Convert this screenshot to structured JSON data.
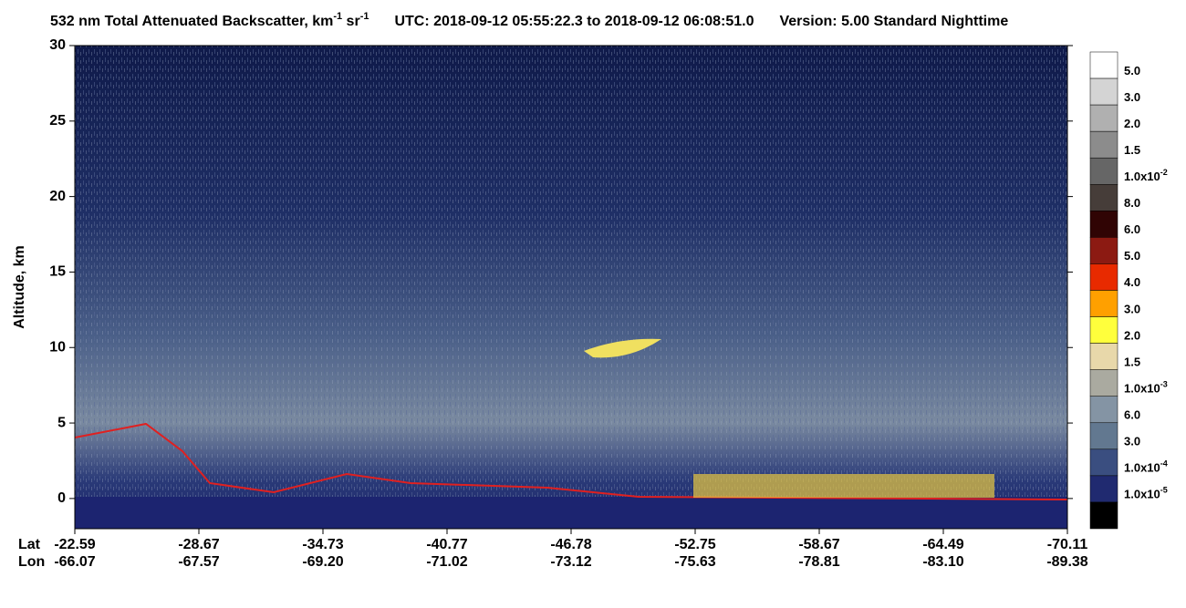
{
  "chart_data": {
    "type": "heatmap",
    "title_parts": [
      "532 nm Total Attenuated Backscatter, km",
      "-1",
      " sr",
      "-1",
      "UTC:  2018-09-12 05:55:22.3  to  2018-09-12 06:08:51.0",
      "Version: 5.00  Standard  Nighttime"
    ],
    "ylabel": "Altitude, km",
    "ylim": [
      -2,
      30
    ],
    "yticks": [
      0,
      5,
      10,
      15,
      20,
      25,
      30
    ],
    "row_labels": [
      "Lat",
      "Lon"
    ],
    "lat": [
      "-22.59",
      "-28.67",
      "-34.73",
      "-40.77",
      "-46.78",
      "-52.75",
      "-58.67",
      "-64.49",
      "-70.11"
    ],
    "lon": [
      "-66.07",
      "-67.57",
      "-69.20",
      "-71.02",
      "-73.12",
      "-75.63",
      "-78.81",
      "-83.10",
      "-89.38"
    ],
    "colorbar": [
      {
        "color": "#ffffff",
        "label": "5.0"
      },
      {
        "color": "#d4d4d4",
        "label": "3.0"
      },
      {
        "color": "#b0b0b0",
        "label": "2.0"
      },
      {
        "color": "#8c8c8c",
        "label": "1.5"
      },
      {
        "color": "#666666",
        "label": "1.0x10",
        "exp": "-2"
      },
      {
        "color": "#463d39",
        "label": "8.0"
      },
      {
        "color": "#300404",
        "label": "6.0"
      },
      {
        "color": "#8c1a12",
        "label": "5.0"
      },
      {
        "color": "#e82a00",
        "label": "4.0"
      },
      {
        "color": "#ffa000",
        "label": "3.0"
      },
      {
        "color": "#ffff3c",
        "label": "2.0"
      },
      {
        "color": "#e8d8aa",
        "label": "1.5"
      },
      {
        "color": "#aaaaa0",
        "label": "1.0x10",
        "exp": "-3"
      },
      {
        "color": "#8494a4",
        "label": "6.0"
      },
      {
        "color": "#627890",
        "label": "3.0"
      },
      {
        "color": "#3a4e80",
        "label": "1.0x10",
        "exp": "-4"
      },
      {
        "color": "#202a70",
        "label": "1.0x10",
        "exp": "-5"
      },
      {
        "color": "#000000"
      }
    ]
  }
}
